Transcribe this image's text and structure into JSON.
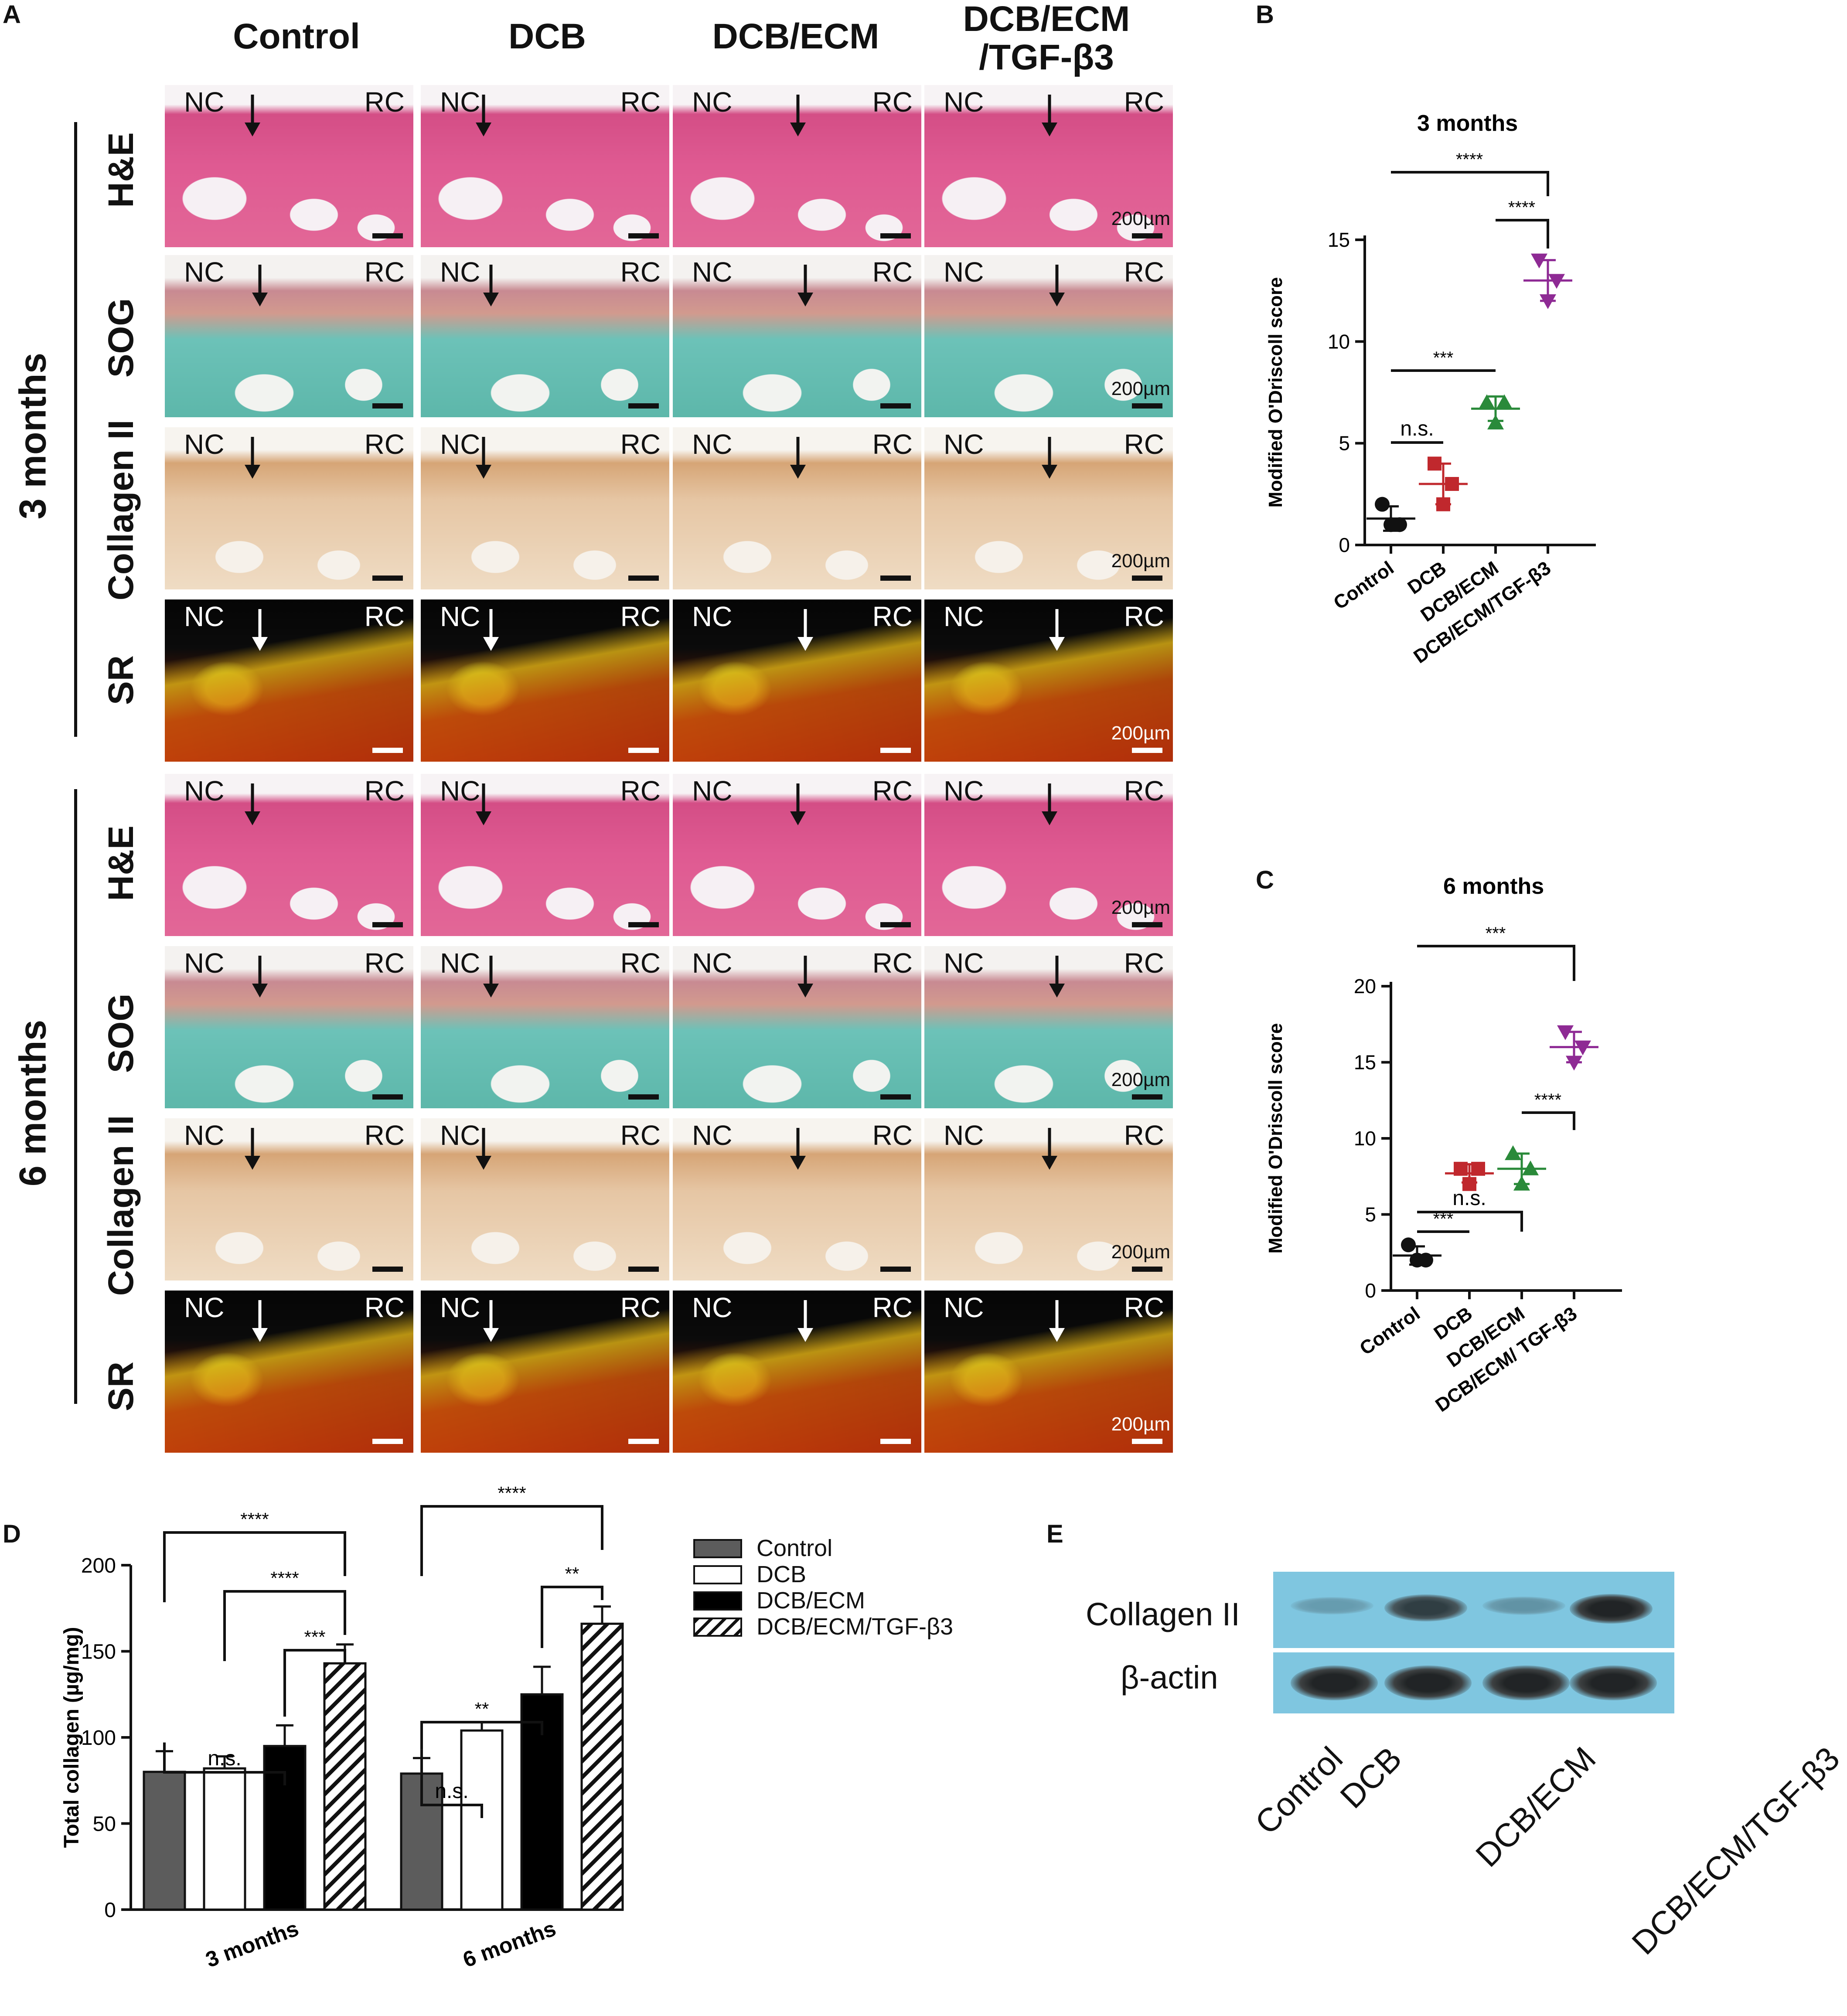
{
  "panels": {
    "A": "A",
    "B": "B",
    "C": "C",
    "D": "D",
    "E": "E"
  },
  "histology": {
    "columns": [
      "Control",
      "DCB",
      "DCB/ECM",
      "DCB/ECM\n/TGF-β3"
    ],
    "rows": [
      "H&E",
      "SOG",
      "Collagen II",
      "SR"
    ],
    "groups": [
      "3 months",
      "6 months"
    ],
    "tile_labels": {
      "left": "NC",
      "right": "RC"
    },
    "scale_bar": "200µm"
  },
  "chart_data": [
    {
      "id": "B",
      "type": "scatter",
      "title": "3 months",
      "ylabel": "Modified O'Driscoll score",
      "xlabel": "",
      "categories": [
        "Control",
        "DCB",
        "DCB/ECM",
        "DCB/ECM/TGF-β3"
      ],
      "ylim": [
        0,
        15
      ],
      "yticks": [
        0,
        5,
        10,
        15
      ],
      "colors": [
        "#111111",
        "#c0282d",
        "#2a8a3a",
        "#8e2a94"
      ],
      "points": [
        [
          2,
          1,
          1
        ],
        [
          4,
          3,
          2
        ],
        [
          7,
          7,
          6
        ],
        [
          14,
          13,
          12
        ]
      ],
      "means": [
        1.3,
        3.0,
        6.7,
        13.0
      ],
      "sd": [
        0.6,
        1.0,
        0.6,
        1.0
      ],
      "significance": [
        {
          "pair": [
            0,
            1
          ],
          "label": "n.s."
        },
        {
          "pair": [
            0,
            2
          ],
          "label": "***"
        },
        {
          "pair": [
            2,
            3
          ],
          "label": "****"
        },
        {
          "pair": [
            0,
            3
          ],
          "label": "****"
        }
      ]
    },
    {
      "id": "C",
      "type": "scatter",
      "title": "6 months",
      "ylabel": "Modified O'Driscoll score",
      "xlabel": "",
      "categories": [
        "Control",
        "DCB",
        "DCB/ECM",
        "DCB/ECM/ TGF-β3"
      ],
      "ylim": [
        0,
        20
      ],
      "yticks": [
        0,
        5,
        10,
        15,
        20
      ],
      "colors": [
        "#111111",
        "#c0282d",
        "#2a8a3a",
        "#8e2a94"
      ],
      "points": [
        [
          3,
          2,
          2
        ],
        [
          8,
          8,
          7
        ],
        [
          9,
          8,
          7
        ],
        [
          17,
          16,
          15
        ]
      ],
      "means": [
        2.3,
        7.7,
        8.0,
        16.0
      ],
      "sd": [
        0.6,
        0.6,
        1.0,
        1.0
      ],
      "significance": [
        {
          "pair": [
            0,
            1
          ],
          "label": "***"
        },
        {
          "pair": [
            0,
            2
          ],
          "label": "n.s."
        },
        {
          "pair": [
            2,
            3
          ],
          "label": "****"
        },
        {
          "pair": [
            0,
            3
          ],
          "label": "***"
        }
      ]
    },
    {
      "id": "D",
      "type": "bar",
      "title": "",
      "ylabel": "Total collagen (µg/mg)",
      "xlabel": "",
      "categories": [
        "3 months",
        "6 months"
      ],
      "ylim": [
        0,
        200
      ],
      "yticks": [
        0,
        50,
        100,
        150,
        200
      ],
      "series": [
        {
          "name": "Control",
          "values": [
            80,
            79
          ],
          "err": [
            12,
            9
          ],
          "fill": "#5c5c5c"
        },
        {
          "name": "DCB",
          "values": [
            82,
            104
          ],
          "err": [
            7,
            5
          ],
          "fill": "#ffffff"
        },
        {
          "name": "DCB/ECM",
          "values": [
            95,
            125
          ],
          "err": [
            12,
            16
          ],
          "fill": "#000000"
        },
        {
          "name": "DCB/ECM/TGF-β3",
          "values": [
            143,
            166
          ],
          "err": [
            11,
            10
          ],
          "fill": "hatch"
        }
      ],
      "significance": [
        {
          "group": 0,
          "pair": [
            0,
            2
          ],
          "label": "n.s."
        },
        {
          "group": 0,
          "pair": [
            2,
            3
          ],
          "label": "***"
        },
        {
          "group": 0,
          "pair": [
            1,
            3
          ],
          "label": "****"
        },
        {
          "group": 0,
          "pair": [
            0,
            3
          ],
          "label": "****"
        },
        {
          "group": 1,
          "pair": [
            0,
            1
          ],
          "label": "n.s."
        },
        {
          "group": 1,
          "pair": [
            0,
            2
          ],
          "label": "**"
        },
        {
          "group": 1,
          "pair": [
            2,
            3
          ],
          "label": "**"
        },
        {
          "group": 1,
          "pair": [
            0,
            3
          ],
          "label": "****"
        }
      ],
      "legend": [
        "Control",
        "DCB",
        "DCB/ECM",
        "DCB/ECM/TGF-β3"
      ]
    }
  ],
  "blot": {
    "rows": [
      "Collagen II",
      "β-actin"
    ],
    "lanes": [
      "Control",
      "DCB",
      "DCB/ECM",
      "DCB/ECM/TGF-β3"
    ],
    "collagen_intensity": [
      0.25,
      0.8,
      0.3,
      0.95
    ],
    "actin_intensity": [
      0.95,
      0.95,
      0.95,
      0.95
    ]
  }
}
